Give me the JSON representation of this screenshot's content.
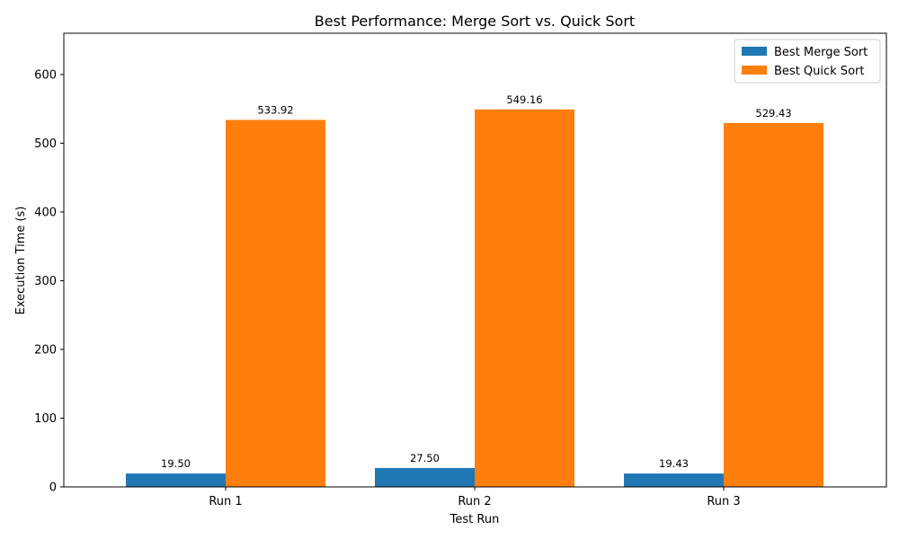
{
  "chart_data": {
    "type": "bar",
    "title": "Best Performance: Merge Sort vs. Quick Sort",
    "xlabel": "Test Run",
    "ylabel": "Execution Time (s)",
    "categories": [
      "Run 1",
      "Run 2",
      "Run 3"
    ],
    "series": [
      {
        "name": "Best Merge Sort",
        "values": [
          19.5,
          27.5,
          19.43
        ],
        "labels": [
          "19.50",
          "27.50",
          "19.43"
        ],
        "color": "#1f77b4"
      },
      {
        "name": "Best Quick Sort",
        "values": [
          533.92,
          549.16,
          529.43
        ],
        "labels": [
          "533.92",
          "549.16",
          "529.43"
        ],
        "color": "#ff7f0e"
      }
    ],
    "ylim": [
      0,
      660
    ],
    "yticks": [
      0,
      100,
      200,
      300,
      400,
      500,
      600
    ],
    "ytick_labels": [
      "0",
      "100",
      "200",
      "300",
      "400",
      "500",
      "600"
    ],
    "grid": false,
    "legend_position": "top-right"
  }
}
